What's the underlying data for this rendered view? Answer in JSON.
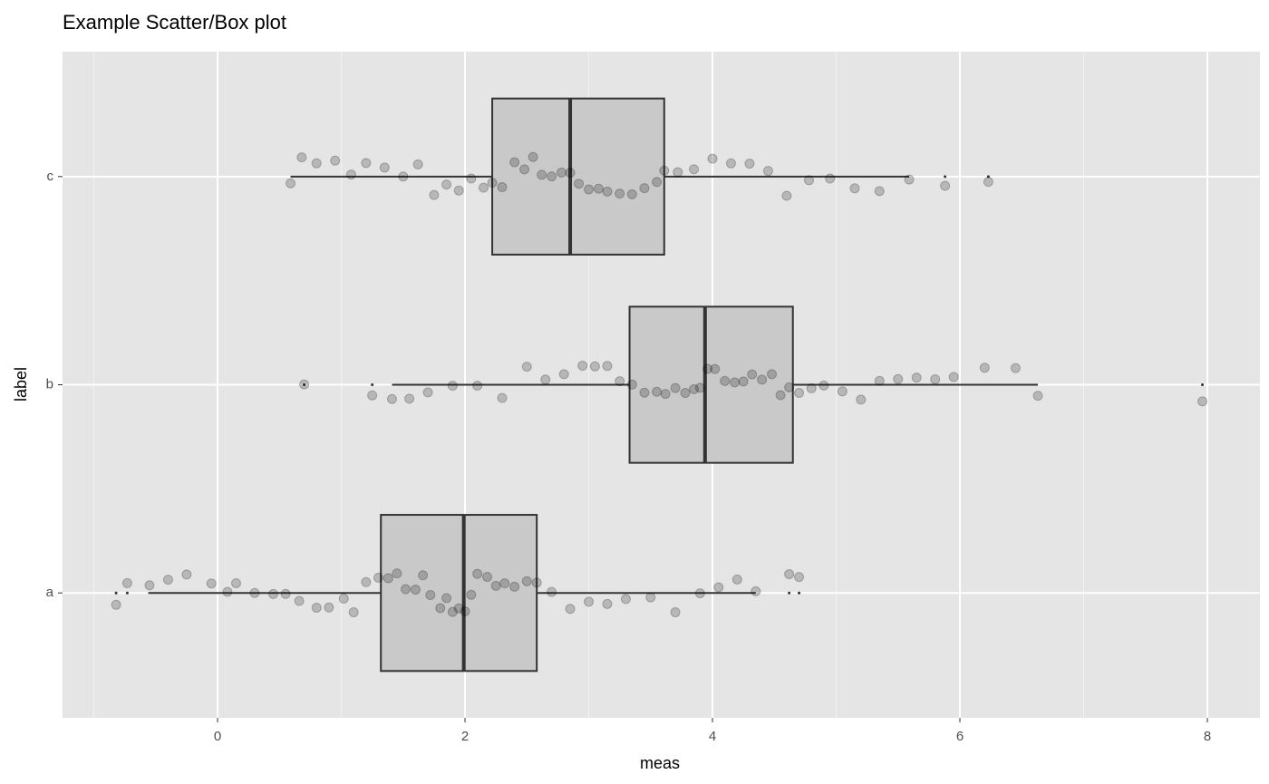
{
  "chart_data": {
    "type": "box-jitter",
    "title": "Example Scatter/Box plot",
    "x_label": "meas",
    "y_label": "label",
    "categories": [
      "a",
      "b",
      "c"
    ],
    "xlim": [
      -1.253,
      8.425
    ],
    "xticks": [
      0,
      2,
      4,
      6,
      8
    ],
    "grid": true,
    "box_color": "#333333",
    "box_fill": "#c9c9c9",
    "point_color": "#000000",
    "boxes": [
      {
        "whisker_low": -0.56,
        "q1": 1.32,
        "median": 1.99,
        "q3": 2.58,
        "whisker_high": 4.35,
        "outliers": [
          -0.82,
          -0.73,
          4.62,
          4.7
        ]
      },
      {
        "whisker_low": 1.41,
        "q1": 3.33,
        "median": 3.94,
        "q3": 4.65,
        "whisker_high": 6.63,
        "outliers": [
          0.7,
          1.25,
          7.96
        ]
      },
      {
        "whisker_low": 0.59,
        "q1": 2.22,
        "median": 2.85,
        "q3": 3.61,
        "whisker_high": 5.59,
        "outliers": [
          5.88,
          6.23
        ]
      }
    ],
    "points": [
      [
        -0.82,
        -0.73,
        -0.55,
        -0.4,
        -0.25,
        -0.05,
        0.08,
        0.15,
        0.3,
        0.45,
        0.55,
        0.66,
        0.8,
        0.9,
        1.02,
        1.1,
        1.2,
        1.3,
        1.38,
        1.45,
        1.52,
        1.6,
        1.66,
        1.72,
        1.8,
        1.85,
        1.9,
        1.95,
        2.0,
        2.05,
        2.1,
        2.18,
        2.25,
        2.32,
        2.4,
        2.5,
        2.58,
        2.7,
        2.85,
        3.0,
        3.15,
        3.3,
        3.5,
        3.7,
        3.9,
        4.05,
        4.2,
        4.35,
        4.62,
        4.7
      ],
      [
        0.7,
        1.25,
        1.41,
        1.55,
        1.7,
        1.9,
        2.1,
        2.3,
        2.5,
        2.65,
        2.8,
        2.95,
        3.05,
        3.15,
        3.25,
        3.35,
        3.45,
        3.55,
        3.62,
        3.7,
        3.78,
        3.85,
        3.9,
        3.96,
        4.02,
        4.1,
        4.18,
        4.25,
        4.32,
        4.4,
        4.48,
        4.55,
        4.62,
        4.7,
        4.8,
        4.9,
        5.05,
        5.2,
        5.35,
        5.5,
        5.65,
        5.8,
        5.95,
        6.2,
        6.45,
        6.63,
        7.96
      ],
      [
        0.59,
        0.68,
        0.8,
        0.95,
        1.08,
        1.2,
        1.35,
        1.5,
        1.62,
        1.75,
        1.85,
        1.95,
        2.05,
        2.15,
        2.22,
        2.3,
        2.4,
        2.48,
        2.55,
        2.62,
        2.7,
        2.78,
        2.85,
        2.92,
        3.0,
        3.08,
        3.15,
        3.25,
        3.35,
        3.45,
        3.55,
        3.61,
        3.72,
        3.85,
        4.0,
        4.15,
        4.3,
        4.45,
        4.6,
        4.78,
        4.95,
        5.15,
        5.35,
        5.59,
        5.88,
        6.23
      ]
    ]
  }
}
